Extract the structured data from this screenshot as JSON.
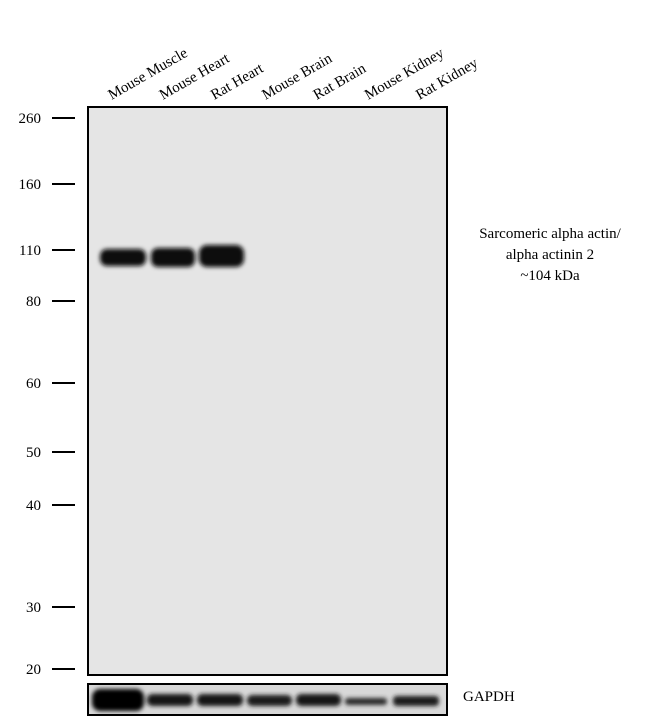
{
  "lanes": [
    "Mouse Muscle",
    "Mouse Heart",
    "Rat Heart",
    "Mouse Brain",
    "Rat Brain",
    "Mouse Kidney",
    "Rat Kidney"
  ],
  "markers": [
    "260",
    "160",
    "110",
    "80",
    "60",
    "50",
    "40",
    "30",
    "20"
  ],
  "annotation": [
    "Sarcomeric alpha actin/",
    "alpha actinin 2",
    "~104 kDa"
  ],
  "loading_control": "GAPDH"
}
